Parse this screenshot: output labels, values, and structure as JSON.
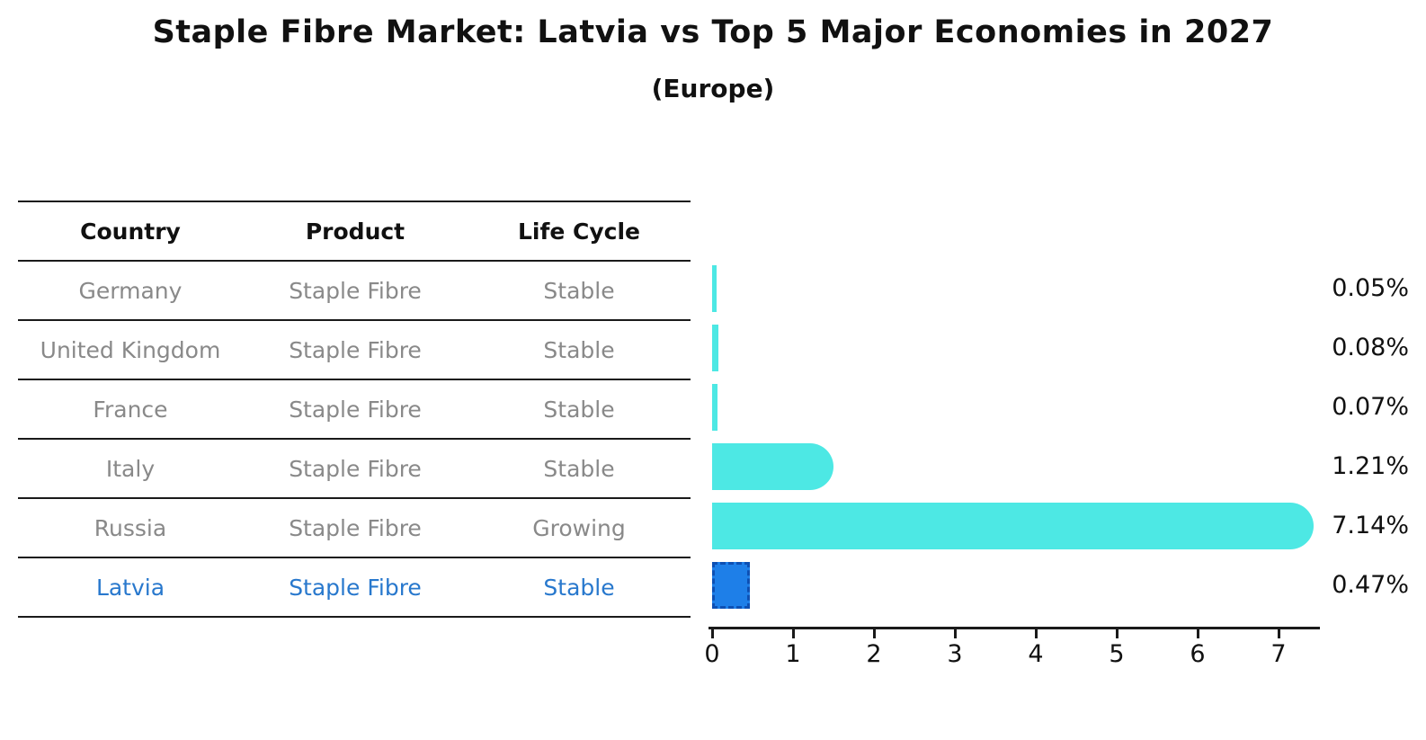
{
  "title": "Staple Fibre Market: Latvia vs Top 5 Major Economies in 2027",
  "subtitle": "(Europe)",
  "table": {
    "columns": [
      "Country",
      "Product",
      "Life Cycle"
    ],
    "rows": [
      {
        "country": "Germany",
        "product": "Staple Fibre",
        "life_cycle": "Stable",
        "value_label": "0.05%",
        "highlight": false
      },
      {
        "country": "United Kingdom",
        "product": "Staple Fibre",
        "life_cycle": "Stable",
        "value_label": "0.08%",
        "highlight": false
      },
      {
        "country": "France",
        "product": "Staple Fibre",
        "life_cycle": "Stable",
        "value_label": "0.07%",
        "highlight": false
      },
      {
        "country": "Italy",
        "product": "Staple Fibre",
        "life_cycle": "Stable",
        "value_label": "1.21%",
        "highlight": false
      },
      {
        "country": "Russia",
        "product": "Staple Fibre",
        "life_cycle": "Growing",
        "value_label": "7.14%",
        "highlight": false
      },
      {
        "country": "Latvia",
        "product": "Staple Fibre",
        "life_cycle": "Stable",
        "value_label": "0.47%",
        "highlight": true
      }
    ]
  },
  "chart_data": {
    "type": "bar",
    "orientation": "horizontal",
    "title": "Staple Fibre Market: Latvia vs Top 5 Major Economies in 2027",
    "subtitle": "(Europe)",
    "categories": [
      "Germany",
      "United Kingdom",
      "France",
      "Italy",
      "Russia",
      "Latvia"
    ],
    "values": [
      0.05,
      0.08,
      0.07,
      1.21,
      7.14,
      0.47
    ],
    "value_labels": [
      "0.05%",
      "0.08%",
      "0.07%",
      "1.21%",
      "7.14%",
      "0.47%"
    ],
    "units": "percent",
    "x_ticks": [
      0,
      1,
      2,
      3,
      4,
      5,
      6,
      7
    ],
    "xlim": [
      0,
      7.5
    ],
    "grid": false,
    "legend": "none",
    "bar_color": "#4de8e4",
    "highlight_category": "Latvia",
    "highlight_bar_color": "#1e7fe8",
    "highlight_border_color": "#0d50b4"
  },
  "colors": {
    "background": "#ffffff",
    "row_text": "#898989",
    "highlight_text": "#2878cd",
    "header_text": "#111111",
    "line": "#1a1a1a"
  }
}
